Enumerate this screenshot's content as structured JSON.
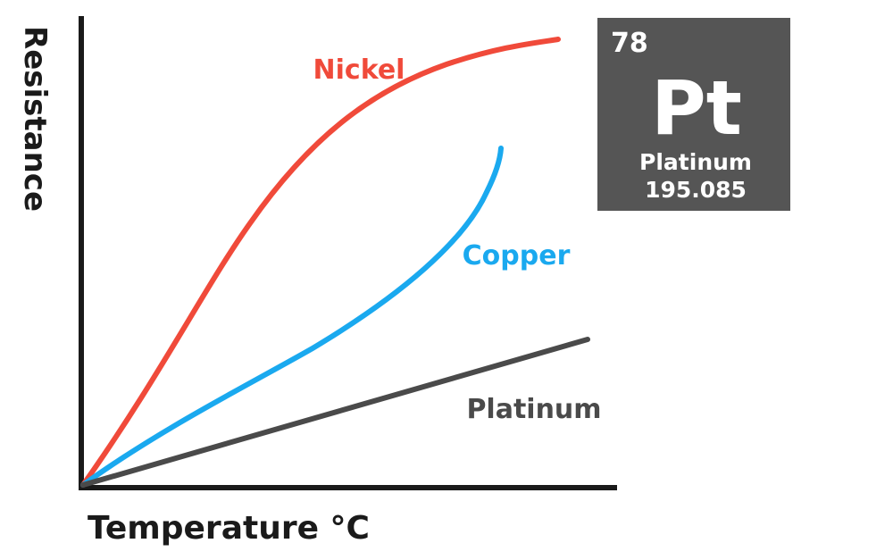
{
  "axes": {
    "x_label": "Temperature °C",
    "y_label": "Resistance"
  },
  "curves": [
    {
      "label": "Nickel"
    },
    {
      "label": "Copper"
    },
    {
      "label": "Platinum"
    }
  ],
  "element": {
    "number": "78",
    "symbol": "Pt",
    "name": "Platinum",
    "mass": "195.085"
  }
}
